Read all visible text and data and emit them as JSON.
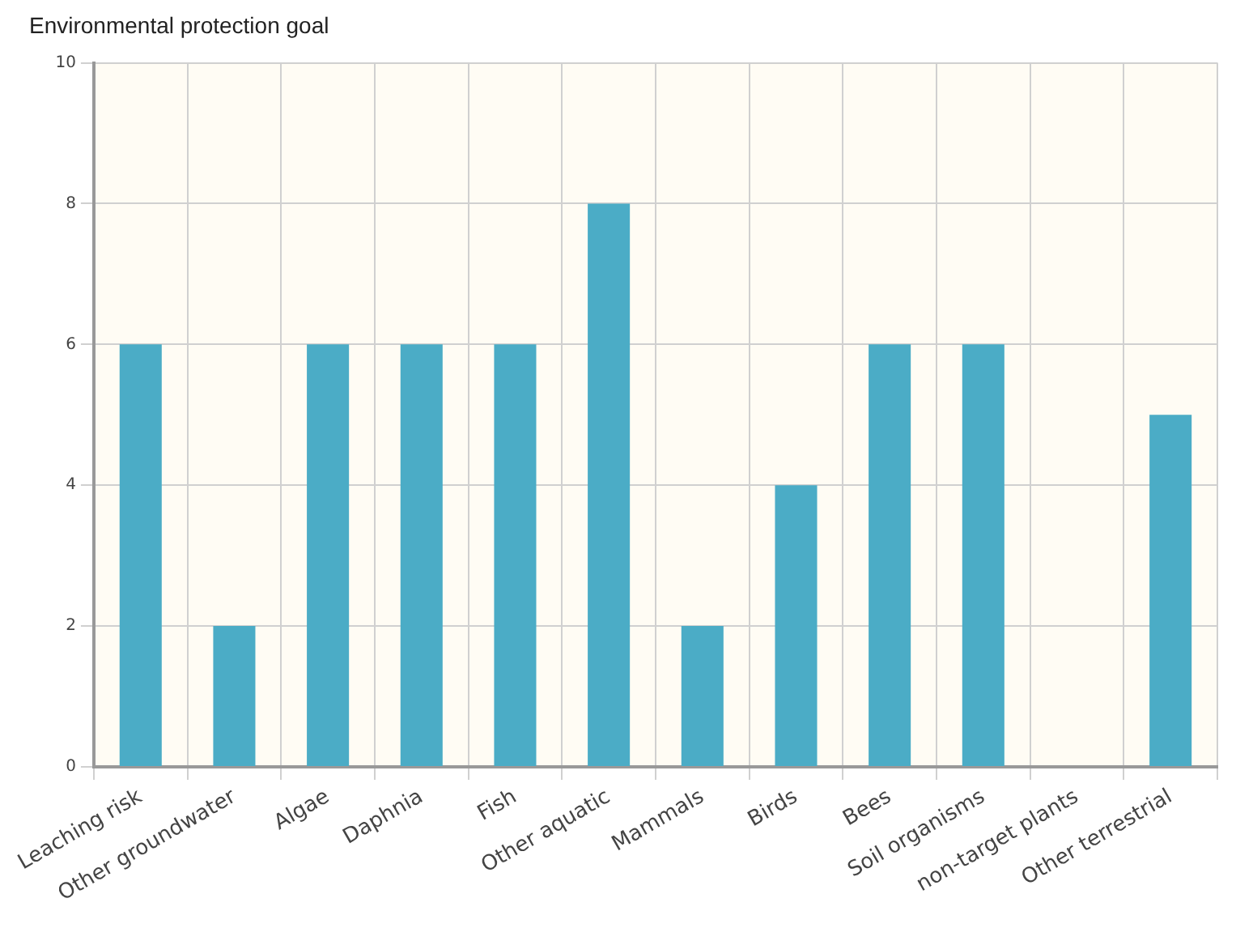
{
  "chart_data": {
    "type": "bar",
    "title": "Environmental protection goal",
    "categories": [
      "Leaching risk",
      "Other groundwater",
      "Algae",
      "Daphnia",
      "Fish",
      "Other aquatic",
      "Mammals",
      "Birds",
      "Bees",
      "Soil organisms",
      "non-target plants",
      "Other terrestrial"
    ],
    "values": [
      6,
      2,
      6,
      6,
      6,
      8,
      2,
      4,
      6,
      6,
      0,
      5
    ],
    "color": "#4bacc6",
    "ylim": [
      0,
      10
    ],
    "yticks": [
      0,
      2,
      4,
      6,
      8,
      10
    ],
    "grid": true,
    "legend": false
  }
}
